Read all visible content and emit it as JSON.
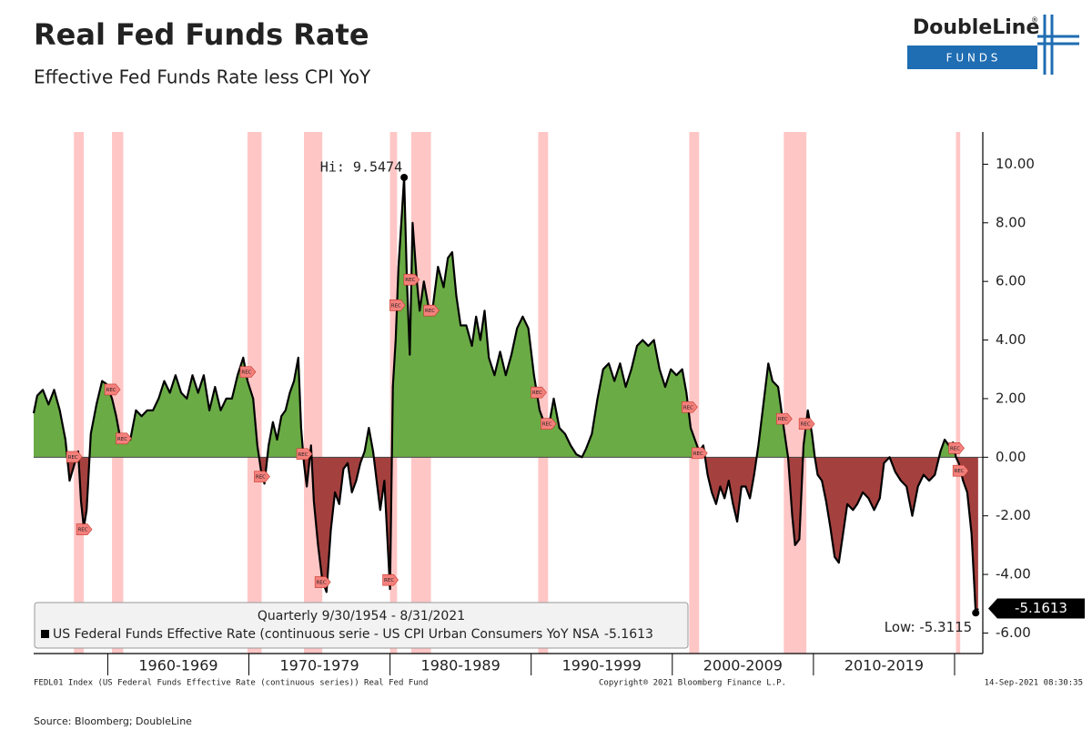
{
  "header": {
    "title": "Real Fed Funds Rate",
    "subtitle": "Effective Fed Funds Rate less CPI YoY",
    "logo": {
      "name": "DoubleLine",
      "mark": "®",
      "sub": "F U N D S"
    }
  },
  "chart_data": {
    "type": "area",
    "pos_color": "#6aab45",
    "neg_color": "#a4413f",
    "line_color": "#000000",
    "recession_color": "#ffb3b3",
    "xlim": [
      1954.75,
      2022.0
    ],
    "ylim": [
      -6.7,
      11.1
    ],
    "yticks": [
      {
        "value": -6,
        "label": "-6.00"
      },
      {
        "value": -4,
        "label": "-4.00"
      },
      {
        "value": -2,
        "label": "-2.00"
      },
      {
        "value": 0,
        "label": "0.00"
      },
      {
        "value": 2,
        "label": "2.00"
      },
      {
        "value": 4,
        "label": "4.00"
      },
      {
        "value": 6,
        "label": "6.00"
      },
      {
        "value": 8,
        "label": "8.00"
      },
      {
        "value": 10,
        "label": "10.00"
      }
    ],
    "x_bands": [
      {
        "label": "1960-1969",
        "start": 1960,
        "end": 1970
      },
      {
        "label": "1970-1979",
        "start": 1970,
        "end": 1980
      },
      {
        "label": "1980-1989",
        "start": 1980,
        "end": 1990
      },
      {
        "label": "1990-1999",
        "start": 1990,
        "end": 2000
      },
      {
        "label": "2000-2009",
        "start": 2000,
        "end": 2010
      },
      {
        "label": "2010-2019",
        "start": 2010,
        "end": 2020
      }
    ],
    "recession_label": "REC",
    "recessions": [
      {
        "start": 1957.6,
        "end": 1958.3
      },
      {
        "start": 1960.3,
        "end": 1961.1
      },
      {
        "start": 1969.9,
        "end": 1970.9
      },
      {
        "start": 1973.9,
        "end": 1975.2
      },
      {
        "start": 1980.0,
        "end": 1980.5
      },
      {
        "start": 1981.5,
        "end": 1982.9
      },
      {
        "start": 1990.5,
        "end": 1991.2
      },
      {
        "start": 2001.2,
        "end": 2001.9
      },
      {
        "start": 2007.9,
        "end": 2009.5
      },
      {
        "start": 2020.1,
        "end": 2020.4
      }
    ],
    "legend_title": "Quarterly 9/30/1954 - 8/31/2021",
    "last_value": -5.1613,
    "annotations": [
      {
        "label": "Hi: 9.5474",
        "x": 1981.0,
        "value": 9.5474
      },
      {
        "label": "Low: -5.3115",
        "x": 2021.5,
        "value": -5.3115
      }
    ],
    "series": [
      {
        "name": "US Federal Funds Effective Rate (continuous serie - US CPI Urban Consumers YoY NSA",
        "x": [
          1954.75,
          1955.0,
          1955.4,
          1955.8,
          1956.2,
          1956.6,
          1957.0,
          1957.3,
          1957.6,
          1957.9,
          1958.1,
          1958.3,
          1958.5,
          1958.8,
          1959.2,
          1959.6,
          1959.9,
          1960.3,
          1960.6,
          1960.9,
          1961.3,
          1961.6,
          1962.0,
          1962.4,
          1962.8,
          1963.2,
          1963.6,
          1964.0,
          1964.4,
          1964.8,
          1965.2,
          1965.6,
          1966.0,
          1966.4,
          1966.8,
          1967.2,
          1967.6,
          1968.0,
          1968.4,
          1968.8,
          1969.2,
          1969.6,
          1969.9,
          1970.3,
          1970.6,
          1970.9,
          1971.1,
          1971.4,
          1971.7,
          1972.0,
          1972.3,
          1972.6,
          1972.9,
          1973.2,
          1973.5,
          1973.7,
          1973.9,
          1974.1,
          1974.4,
          1974.6,
          1974.9,
          1975.2,
          1975.5,
          1975.8,
          1976.1,
          1976.4,
          1976.7,
          1977.0,
          1977.3,
          1977.6,
          1977.9,
          1978.2,
          1978.5,
          1978.8,
          1979.0,
          1979.3,
          1979.6,
          1980.0,
          1980.2,
          1980.4,
          1980.6,
          1980.8,
          1981.0,
          1981.2,
          1981.4,
          1981.6,
          1981.9,
          1982.1,
          1982.4,
          1982.7,
          1983.0,
          1983.4,
          1983.8,
          1984.1,
          1984.4,
          1984.7,
          1985.0,
          1985.4,
          1985.8,
          1986.1,
          1986.4,
          1986.7,
          1987.0,
          1987.4,
          1987.8,
          1988.2,
          1988.6,
          1989.0,
          1989.4,
          1989.8,
          1990.2,
          1990.6,
          1990.9,
          1991.3,
          1991.6,
          1992.0,
          1992.4,
          1992.8,
          1993.2,
          1993.6,
          1993.9,
          1994.3,
          1994.7,
          1995.1,
          1995.5,
          1995.9,
          1996.3,
          1996.7,
          1997.1,
          1997.5,
          1997.9,
          1998.3,
          1998.7,
          1999.1,
          1999.5,
          1999.9,
          2000.3,
          2000.7,
          2001.0,
          2001.3,
          2001.6,
          2001.9,
          2002.2,
          2002.5,
          2002.8,
          2003.1,
          2003.4,
          2003.7,
          2004.0,
          2004.3,
          2004.6,
          2004.9,
          2005.2,
          2005.5,
          2005.8,
          2006.1,
          2006.4,
          2006.8,
          2007.1,
          2007.5,
          2007.9,
          2008.2,
          2008.5,
          2008.7,
          2009.0,
          2009.3,
          2009.6,
          2009.9,
          2010.1,
          2010.3,
          2010.6,
          2010.9,
          2011.2,
          2011.5,
          2011.8,
          2012.1,
          2012.4,
          2012.8,
          2013.1,
          2013.5,
          2013.9,
          2014.3,
          2014.7,
          2015.0,
          2015.4,
          2015.8,
          2016.2,
          2016.6,
          2017.0,
          2017.4,
          2017.8,
          2018.2,
          2018.6,
          2019.0,
          2019.3,
          2019.6,
          2019.9,
          2020.1,
          2020.3,
          2020.6,
          2020.9,
          2021.2,
          2021.4,
          2021.5,
          2021.67
        ],
        "values": [
          1.5,
          2.1,
          2.3,
          1.8,
          2.3,
          1.6,
          0.6,
          -0.8,
          -0.3,
          0.2,
          -1.5,
          -2.4,
          -1.8,
          0.8,
          1.8,
          2.6,
          2.5,
          2.0,
          1.4,
          0.6,
          0.8,
          0.6,
          1.6,
          1.4,
          1.6,
          1.6,
          2.0,
          2.6,
          2.2,
          2.8,
          2.2,
          2.0,
          2.8,
          2.2,
          2.8,
          1.6,
          2.4,
          1.6,
          2.0,
          2.0,
          2.8,
          3.4,
          2.6,
          2.0,
          0.4,
          -0.6,
          -0.9,
          0.4,
          1.2,
          0.6,
          1.4,
          1.6,
          2.2,
          2.6,
          3.4,
          1.0,
          -0.2,
          -1.0,
          0.4,
          -1.5,
          -3.0,
          -4.2,
          -4.6,
          -2.5,
          -1.2,
          -1.6,
          -0.4,
          -0.2,
          -1.2,
          -0.8,
          -0.2,
          0.2,
          1.0,
          0.2,
          -0.6,
          -1.8,
          -0.8,
          -4.5,
          2.4,
          4.0,
          6.5,
          8.0,
          9.5474,
          6.0,
          3.5,
          8.0,
          6.0,
          5.0,
          6.0,
          5.2,
          5.0,
          6.5,
          5.8,
          6.8,
          7.0,
          5.5,
          4.5,
          4.5,
          3.8,
          4.8,
          4.0,
          5.0,
          3.4,
          2.8,
          3.6,
          2.8,
          3.5,
          4.4,
          4.8,
          4.4,
          2.8,
          1.6,
          1.2,
          1.2,
          2.0,
          1.0,
          0.8,
          0.4,
          0.1,
          0.0,
          0.3,
          0.8,
          2.0,
          3.0,
          3.2,
          2.6,
          3.2,
          2.4,
          3.0,
          3.8,
          4.0,
          3.8,
          4.0,
          3.0,
          2.4,
          3.0,
          2.8,
          3.0,
          2.2,
          1.0,
          0.6,
          0.2,
          0.4,
          -0.6,
          -1.2,
          -1.6,
          -1.0,
          -1.4,
          -0.8,
          -1.6,
          -2.2,
          -1.0,
          -1.0,
          -1.4,
          -0.6,
          0.4,
          1.6,
          3.2,
          2.6,
          2.4,
          1.0,
          0.0,
          -2.0,
          -3.0,
          -2.8,
          0.4,
          1.6,
          0.8,
          0.0,
          -0.6,
          -0.8,
          -1.5,
          -2.4,
          -3.4,
          -3.6,
          -2.6,
          -1.6,
          -1.8,
          -1.6,
          -1.2,
          -1.4,
          -1.8,
          -1.4,
          -0.2,
          0.0,
          -0.5,
          -0.8,
          -1.0,
          -2.0,
          -1.0,
          -0.6,
          -0.8,
          -0.6,
          0.2,
          0.6,
          0.4,
          0.5,
          0.0,
          -0.2,
          -0.8,
          -1.2,
          -2.6,
          -4.4,
          -5.3115,
          -5.1613
        ]
      }
    ]
  },
  "footer": {
    "index": "FEDL01 Index (US Federal Funds Effective Rate (continuous series)) Real Fed Fund",
    "copyright": "Copyright® 2021 Bloomberg Finance L.P.",
    "timestamp": "14-Sep-2021 08:30:35",
    "source": "Source: Bloomberg; DoubleLine"
  }
}
